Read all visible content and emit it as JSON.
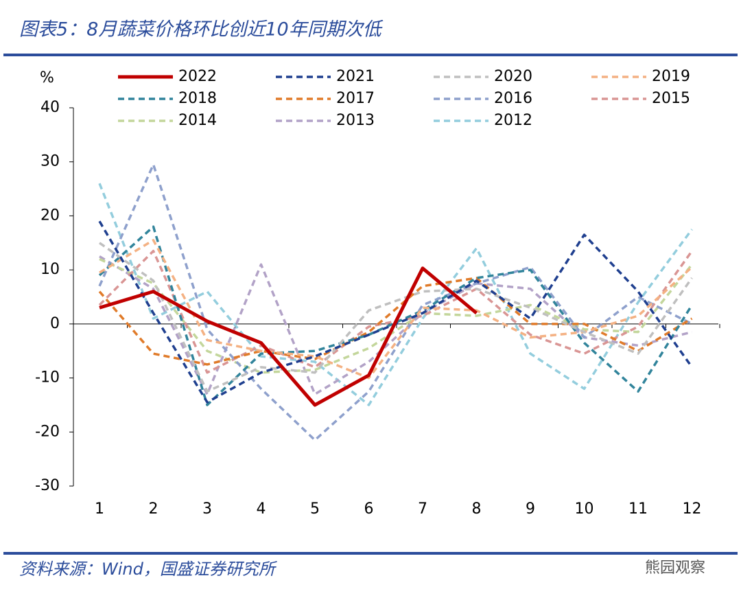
{
  "chart_data": {
    "type": "line",
    "title": "图表5：8月蔬菜价格环比创近10年同期次低",
    "source": "资料来源：Wind，国盛证券研究所",
    "watermark": "熊园观察",
    "y_label": "%",
    "categories": [
      "1",
      "2",
      "3",
      "4",
      "5",
      "6",
      "7",
      "8",
      "9",
      "10",
      "11",
      "12"
    ],
    "ylim": [
      -30,
      40
    ],
    "yticks": [
      -30,
      -20,
      -10,
      0,
      10,
      20,
      30,
      40
    ],
    "series": [
      {
        "name": "2022",
        "color": "#c00000",
        "dashed": false,
        "values": [
          3,
          6,
          0.5,
          -3.5,
          -15,
          -9.5,
          10.3,
          2,
          null,
          null,
          null,
          null
        ]
      },
      {
        "name": "2021",
        "color": "#1f3f8f",
        "dashed": true,
        "values": [
          19,
          2,
          -14.5,
          -9,
          -6,
          -2,
          2,
          8,
          1,
          16.5,
          6,
          -8
        ]
      },
      {
        "name": "2020",
        "color": "#bfbfbf",
        "dashed": true,
        "values": [
          15,
          8,
          -12.5,
          -8,
          -9,
          2.5,
          6,
          6.5,
          3,
          -1.5,
          -5.5,
          8.5
        ]
      },
      {
        "name": "2019",
        "color": "#f4b183",
        "dashed": true,
        "values": [
          9.5,
          15.5,
          -3,
          -5,
          -6,
          -10,
          3,
          2.5,
          -2.5,
          -1.5,
          1.5,
          10.5
        ]
      },
      {
        "name": "2018",
        "color": "#31849b",
        "dashed": true,
        "values": [
          9,
          18,
          -15,
          -5.5,
          -5,
          -2,
          2.5,
          8.5,
          10,
          -3.5,
          -12.5,
          3.5
        ]
      },
      {
        "name": "2017",
        "color": "#e07b2a",
        "dashed": true,
        "values": [
          6,
          -5.5,
          -7.5,
          -5,
          -6.5,
          -1.5,
          7,
          8.5,
          0,
          0,
          -5,
          1
        ]
      },
      {
        "name": "2016",
        "color": "#8ea0cc",
        "dashed": true,
        "values": [
          7,
          29.5,
          -1,
          -12,
          -21.5,
          -12.5,
          3.5,
          7.5,
          10.5,
          -2.5,
          5,
          0
        ]
      },
      {
        "name": "2015",
        "color": "#d99594",
        "dashed": true,
        "values": [
          3.5,
          13.5,
          -9,
          -4,
          -8,
          -0.5,
          1.5,
          6.5,
          -2,
          -5.5,
          -0.5,
          13.5
        ]
      },
      {
        "name": "2014",
        "color": "#c3d69b",
        "dashed": true,
        "values": [
          12,
          7.5,
          -5,
          -9,
          -8.5,
          -4.5,
          2,
          1.5,
          3.5,
          -1,
          -1.5,
          11
        ]
      },
      {
        "name": "2013",
        "color": "#b2a2c7",
        "dashed": true,
        "values": [
          12.5,
          6.5,
          -13,
          11,
          -13,
          -7,
          2,
          7.5,
          6.5,
          -2.5,
          -4,
          -1.5
        ]
      },
      {
        "name": "2012",
        "color": "#93cddd",
        "dashed": true,
        "values": [
          26,
          1,
          6,
          -6,
          -7,
          -15,
          1,
          14,
          -5.5,
          -12,
          4,
          17.5
        ]
      }
    ]
  }
}
